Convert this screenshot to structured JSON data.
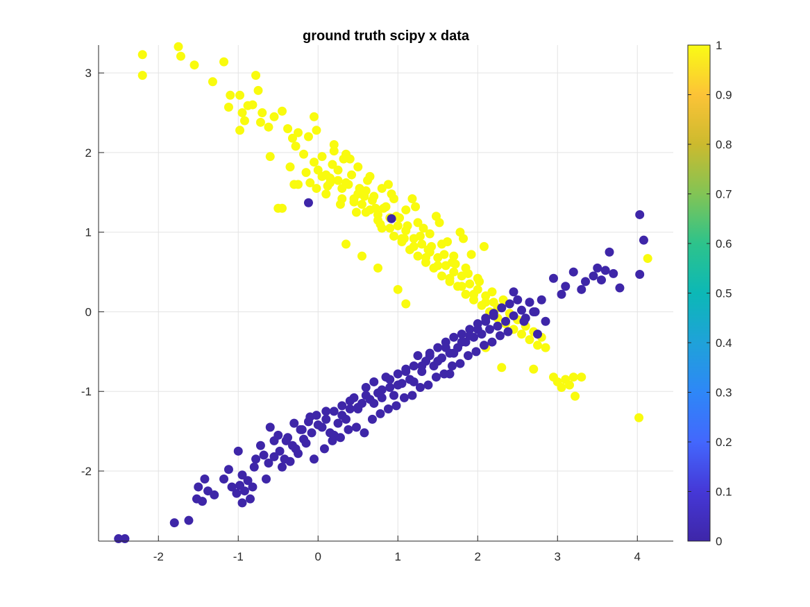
{
  "chart_data": {
    "type": "scatter",
    "title": "ground truth scipy x data",
    "xlabel": "",
    "ylabel": "",
    "xlim": [
      -2.75,
      4.45
    ],
    "ylim": [
      -2.88,
      3.35
    ],
    "xticks": [
      "-2",
      "-1",
      "0",
      "1",
      "2",
      "3",
      "4"
    ],
    "xtick_values": [
      -2,
      -1,
      0,
      1,
      2,
      3,
      4
    ],
    "yticks": [
      "-2",
      "-1",
      "0",
      "1",
      "2",
      "3"
    ],
    "ytick_values": [
      -2,
      -1,
      0,
      1,
      2,
      3
    ],
    "grid": true,
    "colorbar": {
      "min": 0,
      "max": 1,
      "ticks": [
        "0",
        "0.1",
        "0.2",
        "0.3",
        "0.4",
        "0.5",
        "0.6",
        "0.7",
        "0.8",
        "0.9",
        "1"
      ],
      "tick_values": [
        0,
        0.1,
        0.2,
        0.3,
        0.4,
        0.5,
        0.6,
        0.7,
        0.8,
        0.9,
        1
      ],
      "colormap": "parula",
      "stops": [
        "#3e26a8",
        "#4538d7",
        "#4367fd",
        "#2e87f7",
        "#1fa2d9",
        "#0cb8b6",
        "#2dc38b",
        "#82c455",
        "#ccba2e",
        "#fcc337",
        "#f9fb15"
      ]
    },
    "series": [
      {
        "value": 1,
        "color": "#f9fb0e",
        "x": [
          -2.2,
          -2.2,
          -1.75,
          -1.72,
          -1.55,
          -1.32,
          -1.18,
          -1.1,
          -1.12,
          -0.98,
          -0.95,
          -0.88,
          -0.78,
          -0.75,
          -0.72,
          -0.98,
          -0.92,
          -0.82,
          -0.7,
          -0.62,
          -0.55,
          -0.45,
          -0.38,
          -0.32,
          -0.28,
          -0.25,
          -0.18,
          -0.12,
          -0.05,
          -0.02,
          -0.1,
          -0.02,
          0.05,
          0.1,
          0.15,
          0.2,
          0.25,
          0.3,
          0.35,
          0.4,
          0.45,
          0.5,
          0.55,
          0.6,
          0.65,
          0.7,
          0.75,
          0.8,
          0.85,
          0.9,
          0.95,
          1.0,
          1.05,
          1.1,
          1.15,
          1.2,
          1.25,
          1.3,
          1.35,
          1.4,
          1.45,
          1.5,
          1.55,
          1.6,
          1.65,
          1.7,
          1.75,
          1.8,
          1.85,
          1.9,
          1.95,
          2.0,
          2.05,
          2.1,
          2.15,
          2.2,
          2.25,
          2.3,
          2.35,
          2.4,
          2.45,
          2.5,
          2.55,
          2.6,
          2.65,
          2.7,
          2.75,
          2.8,
          2.95,
          3.0,
          3.05,
          3.1,
          3.15,
          3.2,
          3.3,
          3.22,
          4.02,
          4.13,
          -0.6,
          -0.45,
          -0.35,
          -0.25,
          -0.15,
          -0.05,
          0.05,
          0.12,
          0.18,
          0.25,
          0.3,
          0.38,
          0.45,
          0.52,
          0.6,
          0.68,
          0.75,
          0.82,
          0.9,
          0.98,
          1.05,
          1.12,
          1.2,
          1.28,
          1.35,
          1.42,
          1.5,
          1.58,
          1.65,
          1.72,
          1.8,
          1.88,
          1.95,
          2.02,
          2.1,
          2.18,
          2.25,
          2.32,
          0.2,
          0.35,
          0.5,
          0.65,
          0.8,
          0.95,
          1.1,
          1.25,
          1.4,
          1.55,
          1.7,
          1.85,
          2.0,
          0.1,
          0.28,
          0.42,
          0.58,
          0.72,
          0.88,
          1.02,
          1.18,
          1.32,
          1.48,
          1.62,
          1.78,
          1.92,
          2.08,
          0.0,
          0.15,
          0.32,
          0.48,
          0.62,
          0.78,
          0.92,
          1.08,
          1.22,
          1.38,
          1.52,
          1.68,
          1.82,
          -0.3,
          -0.5,
          0.35,
          0.55,
          0.75,
          1.0,
          1.1,
          1.9,
          2.3,
          2.7,
          2.85,
          2.1
        ],
        "y": [
          3.23,
          2.97,
          3.33,
          3.21,
          3.1,
          2.89,
          3.14,
          2.72,
          2.57,
          2.72,
          2.5,
          2.59,
          2.97,
          2.78,
          2.38,
          2.28,
          2.4,
          2.6,
          2.5,
          2.32,
          2.45,
          2.52,
          2.3,
          2.18,
          2.08,
          2.25,
          1.98,
          2.2,
          2.45,
          2.28,
          1.62,
          1.55,
          1.95,
          1.72,
          1.68,
          2.02,
          1.78,
          1.55,
          1.62,
          1.92,
          1.42,
          1.48,
          1.35,
          1.52,
          1.28,
          1.45,
          1.22,
          1.05,
          1.32,
          1.18,
          0.95,
          1.08,
          0.88,
          1.02,
          0.78,
          0.92,
          0.7,
          0.85,
          0.62,
          0.75,
          0.55,
          0.68,
          0.45,
          0.58,
          0.38,
          0.5,
          0.32,
          0.45,
          0.22,
          0.35,
          0.15,
          0.28,
          0.08,
          0.2,
          0.0,
          0.12,
          -0.08,
          0.05,
          -0.15,
          -0.02,
          -0.22,
          -0.1,
          -0.28,
          -0.18,
          -0.35,
          -0.25,
          -0.42,
          -0.32,
          -0.82,
          -0.88,
          -0.95,
          -0.85,
          -0.92,
          -0.82,
          -0.82,
          -1.06,
          -1.33,
          0.67,
          1.95,
          1.3,
          1.82,
          1.6,
          1.75,
          1.88,
          1.7,
          1.58,
          1.85,
          1.65,
          1.42,
          1.6,
          1.38,
          1.55,
          1.25,
          1.4,
          1.15,
          1.3,
          1.05,
          1.2,
          0.92,
          1.08,
          0.82,
          0.95,
          0.68,
          0.82,
          0.58,
          0.72,
          0.42,
          0.6,
          0.32,
          0.48,
          0.22,
          0.38,
          0.12,
          0.25,
          0.05,
          0.15,
          2.1,
          1.98,
          1.82,
          1.7,
          1.55,
          1.42,
          1.28,
          1.12,
          0.98,
          0.85,
          0.7,
          0.55,
          0.42,
          1.48,
          1.35,
          1.72,
          1.45,
          1.3,
          1.6,
          1.18,
          1.42,
          1.05,
          1.2,
          0.88,
          1.0,
          0.72,
          0.82,
          1.78,
          1.62,
          1.92,
          1.25,
          1.65,
          1.1,
          1.48,
          0.92,
          1.32,
          0.78,
          1.12,
          0.62,
          0.92,
          1.6,
          1.3,
          0.85,
          0.7,
          0.55,
          0.28,
          0.1,
          -0.3,
          -0.7,
          -0.72,
          -0.45,
          -0.45
        ]
      },
      {
        "value": 0,
        "color": "#3e26a8",
        "x": [
          -2.5,
          -2.42,
          -1.8,
          -1.62,
          -1.45,
          -1.5,
          -1.52,
          -1.42,
          -1.38,
          -1.3,
          -1.18,
          -1.12,
          -1.02,
          -0.98,
          -0.95,
          -0.92,
          -0.88,
          -0.85,
          -0.82,
          -1.08,
          -1.0,
          -0.95,
          -0.78,
          -0.72,
          -0.68,
          -0.62,
          -0.55,
          -0.48,
          -0.42,
          -0.38,
          -0.32,
          -0.28,
          -0.22,
          -0.18,
          -0.12,
          -0.08,
          -0.02,
          0.05,
          0.1,
          0.15,
          0.2,
          0.25,
          0.3,
          0.35,
          0.4,
          0.45,
          0.5,
          0.55,
          0.6,
          0.65,
          0.7,
          0.75,
          0.8,
          0.85,
          0.9,
          0.95,
          1.0,
          1.05,
          1.1,
          1.15,
          1.2,
          1.25,
          1.3,
          1.35,
          1.4,
          1.45,
          1.5,
          1.55,
          1.6,
          1.65,
          1.7,
          1.75,
          1.8,
          1.85,
          1.9,
          1.95,
          2.0,
          2.05,
          2.1,
          2.15,
          2.2,
          2.25,
          2.3,
          2.35,
          2.4,
          2.45,
          2.5,
          2.55,
          2.6,
          2.65,
          2.7,
          2.75,
          2.8,
          2.85,
          2.95,
          3.05,
          3.1,
          3.2,
          3.3,
          3.35,
          3.45,
          3.5,
          3.55,
          3.6,
          3.65,
          3.7,
          3.78,
          4.03,
          4.08,
          4.03,
          -0.12,
          0.92,
          1.65,
          -0.6,
          -0.5,
          -0.4,
          -0.3,
          -0.2,
          -0.1,
          0.0,
          0.1,
          0.2,
          0.3,
          0.4,
          0.5,
          0.6,
          0.7,
          0.8,
          0.9,
          1.0,
          1.1,
          1.2,
          1.3,
          1.4,
          1.5,
          1.6,
          1.7,
          1.8,
          1.9,
          2.0,
          2.1,
          2.2,
          -0.8,
          -0.55,
          -0.35,
          -0.15,
          0.08,
          0.28,
          0.48,
          0.68,
          0.88,
          1.08,
          1.28,
          1.48,
          1.68,
          1.88,
          2.08,
          2.28,
          -0.65,
          -0.45,
          -0.25,
          -0.05,
          0.18,
          0.38,
          0.58,
          0.78,
          0.98,
          1.18,
          1.38,
          1.58,
          1.78,
          1.98,
          2.18,
          2.38,
          2.58,
          2.72,
          2.45,
          2.65
        ],
        "y": [
          -2.85,
          -2.85,
          -2.65,
          -2.62,
          -2.38,
          -2.2,
          -2.35,
          -2.1,
          -2.25,
          -2.3,
          -2.1,
          -1.98,
          -2.28,
          -2.18,
          -2.4,
          -2.25,
          -2.12,
          -2.35,
          -2.2,
          -2.2,
          -1.75,
          -2.05,
          -1.85,
          -1.68,
          -1.8,
          -1.9,
          -1.62,
          -1.75,
          -1.85,
          -1.58,
          -1.68,
          -1.72,
          -1.48,
          -1.6,
          -1.38,
          -1.52,
          -1.3,
          -1.45,
          -1.35,
          -1.52,
          -1.25,
          -1.4,
          -1.18,
          -1.35,
          -1.22,
          -1.08,
          -1.2,
          -1.15,
          -0.95,
          -1.1,
          -0.88,
          -1.02,
          -1.08,
          -0.82,
          -0.95,
          -1.05,
          -0.78,
          -0.9,
          -0.72,
          -0.85,
          -0.68,
          -0.55,
          -0.75,
          -0.62,
          -0.52,
          -0.68,
          -0.45,
          -0.58,
          -0.38,
          -0.52,
          -0.32,
          -0.45,
          -0.28,
          -0.38,
          -0.22,
          -0.32,
          -0.15,
          -0.28,
          -0.08,
          -0.22,
          -0.02,
          -0.18,
          0.05,
          -0.12,
          0.1,
          -0.05,
          0.15,
          0.02,
          -0.08,
          0.12,
          0.0,
          -0.28,
          0.15,
          -0.12,
          0.42,
          0.22,
          0.32,
          0.5,
          0.28,
          0.38,
          0.45,
          0.55,
          0.4,
          0.52,
          0.75,
          0.48,
          0.3,
          1.22,
          0.9,
          0.47,
          1.37,
          1.17,
          -0.78,
          -1.45,
          -1.55,
          -1.62,
          -1.4,
          -1.48,
          -1.32,
          -1.42,
          -1.25,
          -1.55,
          -1.3,
          -1.12,
          -1.22,
          -1.05,
          -1.15,
          -0.98,
          -0.85,
          -0.92,
          -0.75,
          -0.88,
          -0.68,
          -0.55,
          -0.62,
          -0.45,
          -0.52,
          -0.38,
          -0.3,
          -0.22,
          -0.12,
          -0.05,
          -1.95,
          -1.82,
          -1.88,
          -1.65,
          -1.72,
          -1.58,
          -1.45,
          -1.35,
          -1.22,
          -1.08,
          -0.95,
          -0.82,
          -0.68,
          -0.55,
          -0.42,
          -0.3,
          -2.1,
          -1.95,
          -1.78,
          -1.85,
          -1.62,
          -1.48,
          -1.52,
          -1.28,
          -1.18,
          -1.05,
          -0.92,
          -0.78,
          -0.65,
          -0.5,
          -0.38,
          -0.25,
          -0.12,
          0.0,
          0.25,
          0.12
        ]
      }
    ]
  }
}
